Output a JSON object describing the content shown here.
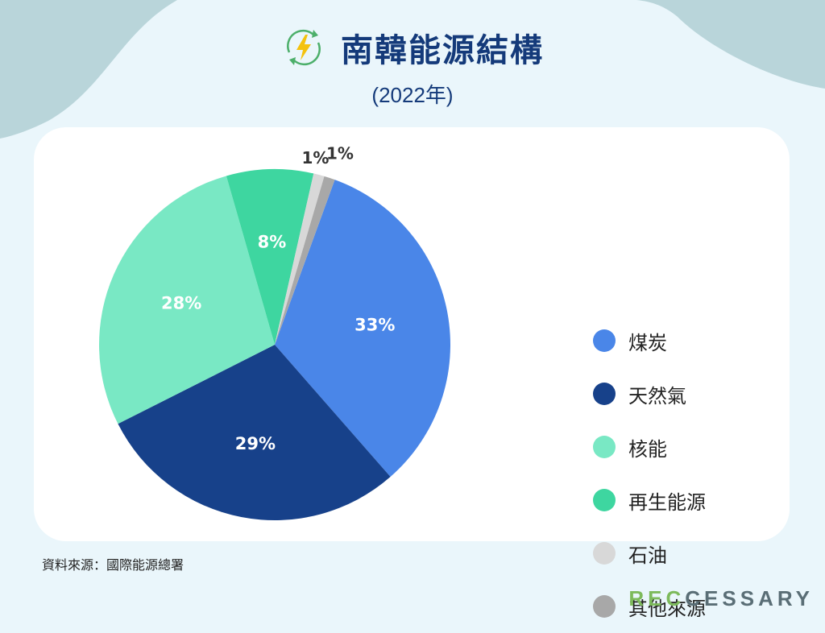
{
  "title": "南韓能源結構",
  "subtitle": "(2022年)",
  "source": "資料來源：國際能源總署",
  "brand": {
    "part1": "REC",
    "part2": "CESSARY"
  },
  "colors": {
    "background": "#eaf6fb",
    "wave": "#b9d5da",
    "title": "#143a7a",
    "brand_green": "#7dba5b",
    "brand_dark": "#5a6e76"
  },
  "icons": {
    "title_icon": "lightning-recycle-icon"
  },
  "chart_data": {
    "type": "pie",
    "title": "南韓能源結構",
    "subtitle": "(2022年)",
    "legend_position": "right",
    "series": [
      {
        "name": "煤炭",
        "value": 33,
        "label": "33%",
        "color": "#4a86e8"
      },
      {
        "name": "天然氣",
        "value": 29,
        "label": "29%",
        "color": "#17418a"
      },
      {
        "name": "核能",
        "value": 28,
        "label": "28%",
        "color": "#79e8c4"
      },
      {
        "name": "再生能源",
        "value": 8,
        "label": "8%",
        "color": "#3ed6a0"
      },
      {
        "name": "石油",
        "value": 1,
        "label": "1%",
        "color": "#d8d8d8"
      },
      {
        "name": "其他來源",
        "value": 1,
        "label": "1%",
        "color": "#a8a8a8"
      }
    ]
  }
}
